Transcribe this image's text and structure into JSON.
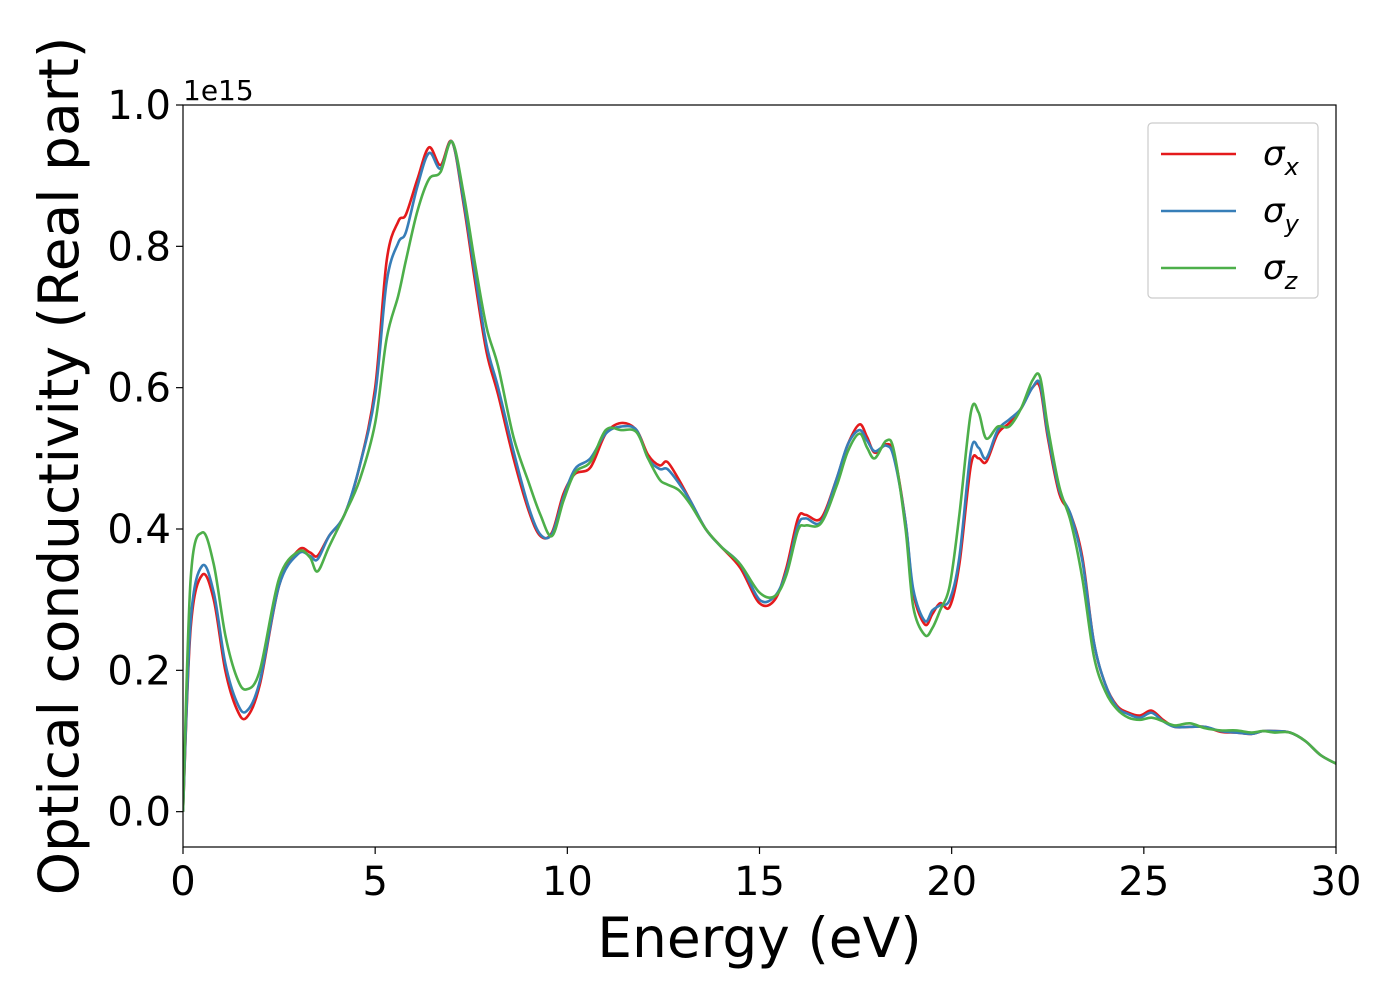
{
  "chart_data": {
    "type": "line",
    "xlabel": "Energy (eV)",
    "ylabel": "Optical conductivity (Real part)",
    "y_offset_label": "1e15",
    "y_scale_factor": 1000000000000000.0,
    "xlim": [
      0,
      30
    ],
    "ylim": [
      -0.05,
      1.0
    ],
    "x_ticks": [
      0,
      5,
      10,
      15,
      20,
      25,
      30
    ],
    "x_tick_labels": [
      "0",
      "5",
      "10",
      "15",
      "20",
      "25",
      "30"
    ],
    "y_ticks": [
      0.0,
      0.2,
      0.4,
      0.6,
      0.8,
      1.0
    ],
    "y_tick_labels": [
      "0.0",
      "0.2",
      "0.4",
      "0.6",
      "0.8",
      "1.0"
    ],
    "grid": false,
    "legend_position": "top-right",
    "series": [
      {
        "name": "σx",
        "symbol": "σ",
        "subscript": "x",
        "color": "#e41a1c",
        "x": [
          0,
          0.2,
          0.5,
          0.8,
          1.1,
          1.4,
          1.65,
          2.0,
          2.5,
          3.0,
          3.3,
          3.5,
          3.8,
          4.2,
          4.6,
          5.0,
          5.3,
          5.6,
          5.8,
          6.1,
          6.4,
          6.7,
          7.0,
          7.3,
          7.6,
          7.9,
          8.2,
          8.6,
          9.0,
          9.3,
          9.6,
          9.9,
          10.2,
          10.6,
          11.0,
          11.4,
          11.8,
          12.1,
          12.4,
          12.6,
          12.9,
          13.2,
          13.6,
          14.0,
          14.5,
          15.0,
          15.4,
          15.7,
          16.0,
          16.2,
          16.6,
          17.0,
          17.3,
          17.6,
          17.8,
          18.0,
          18.3,
          18.5,
          18.8,
          19.0,
          19.3,
          19.5,
          19.7,
          19.95,
          20.2,
          20.5,
          20.7,
          20.9,
          21.2,
          21.5,
          21.8,
          22.1,
          22.3,
          22.5,
          22.8,
          23.1,
          23.4,
          23.7,
          24.0,
          24.3,
          24.6,
          24.9,
          25.2,
          25.5,
          25.8,
          26.2,
          26.6,
          27.0,
          27.4,
          27.8,
          28.1,
          28.4,
          28.8,
          29.2,
          29.6,
          30.0
        ],
        "values": [
          0.0,
          0.26,
          0.335,
          0.3,
          0.2,
          0.145,
          0.133,
          0.18,
          0.32,
          0.37,
          0.367,
          0.362,
          0.39,
          0.42,
          0.49,
          0.6,
          0.78,
          0.835,
          0.845,
          0.895,
          0.94,
          0.915,
          0.948,
          0.86,
          0.75,
          0.65,
          0.59,
          0.5,
          0.425,
          0.39,
          0.395,
          0.45,
          0.478,
          0.487,
          0.535,
          0.55,
          0.54,
          0.505,
          0.49,
          0.495,
          0.47,
          0.44,
          0.4,
          0.375,
          0.345,
          0.295,
          0.3,
          0.345,
          0.415,
          0.42,
          0.415,
          0.47,
          0.52,
          0.548,
          0.53,
          0.508,
          0.52,
          0.505,
          0.41,
          0.31,
          0.265,
          0.28,
          0.295,
          0.29,
          0.35,
          0.49,
          0.5,
          0.495,
          0.535,
          0.55,
          0.57,
          0.6,
          0.6,
          0.53,
          0.45,
          0.42,
          0.36,
          0.24,
          0.18,
          0.15,
          0.14,
          0.136,
          0.143,
          0.13,
          0.12,
          0.12,
          0.12,
          0.113,
          0.112,
          0.11,
          0.114,
          0.114,
          0.112,
          0.1,
          0.08,
          0.068
        ]
      },
      {
        "name": "σy",
        "symbol": "σ",
        "subscript": "y",
        "color": "#377eb8",
        "x": [
          0,
          0.2,
          0.5,
          0.8,
          1.1,
          1.4,
          1.65,
          2.0,
          2.5,
          3.0,
          3.3,
          3.5,
          3.8,
          4.2,
          4.6,
          5.0,
          5.3,
          5.6,
          5.8,
          6.1,
          6.4,
          6.7,
          7.0,
          7.3,
          7.6,
          7.9,
          8.2,
          8.6,
          9.0,
          9.3,
          9.6,
          9.9,
          10.2,
          10.6,
          11.0,
          11.4,
          11.8,
          12.1,
          12.4,
          12.6,
          12.9,
          13.2,
          13.6,
          14.0,
          14.5,
          15.0,
          15.4,
          15.7,
          16.0,
          16.2,
          16.6,
          17.0,
          17.3,
          17.6,
          17.8,
          18.0,
          18.3,
          18.5,
          18.8,
          19.0,
          19.3,
          19.5,
          19.7,
          19.95,
          20.2,
          20.5,
          20.7,
          20.9,
          21.2,
          21.5,
          21.8,
          22.1,
          22.3,
          22.5,
          22.8,
          23.1,
          23.4,
          23.7,
          24.0,
          24.3,
          24.6,
          24.9,
          25.2,
          25.5,
          25.8,
          26.2,
          26.6,
          27.0,
          27.4,
          27.8,
          28.1,
          28.4,
          28.8,
          29.2,
          29.6,
          30.0
        ],
        "values": [
          0.0,
          0.27,
          0.348,
          0.31,
          0.21,
          0.155,
          0.142,
          0.185,
          0.32,
          0.365,
          0.362,
          0.357,
          0.39,
          0.42,
          0.49,
          0.59,
          0.75,
          0.805,
          0.82,
          0.885,
          0.932,
          0.91,
          0.948,
          0.865,
          0.76,
          0.66,
          0.6,
          0.51,
          0.43,
          0.392,
          0.393,
          0.445,
          0.485,
          0.5,
          0.535,
          0.545,
          0.54,
          0.5,
          0.485,
          0.485,
          0.465,
          0.44,
          0.4,
          0.375,
          0.35,
          0.3,
          0.305,
          0.34,
          0.405,
          0.415,
          0.41,
          0.47,
          0.52,
          0.54,
          0.525,
          0.51,
          0.518,
          0.5,
          0.41,
          0.315,
          0.27,
          0.285,
          0.292,
          0.3,
          0.36,
          0.51,
          0.515,
          0.5,
          0.54,
          0.555,
          0.57,
          0.6,
          0.605,
          0.535,
          0.455,
          0.42,
          0.355,
          0.24,
          0.18,
          0.148,
          0.138,
          0.133,
          0.14,
          0.128,
          0.12,
          0.12,
          0.12,
          0.114,
          0.112,
          0.11,
          0.114,
          0.114,
          0.112,
          0.1,
          0.08,
          0.068
        ]
      },
      {
        "name": "σz",
        "symbol": "σ",
        "subscript": "z",
        "color": "#4daf4a",
        "x": [
          0,
          0.2,
          0.5,
          0.8,
          1.1,
          1.4,
          1.65,
          2.0,
          2.5,
          3.0,
          3.3,
          3.5,
          3.8,
          4.2,
          4.6,
          5.0,
          5.3,
          5.6,
          5.8,
          6.1,
          6.4,
          6.7,
          7.0,
          7.3,
          7.6,
          7.9,
          8.2,
          8.6,
          9.0,
          9.3,
          9.6,
          9.9,
          10.2,
          10.6,
          11.0,
          11.4,
          11.8,
          12.1,
          12.4,
          12.6,
          12.9,
          13.2,
          13.6,
          14.0,
          14.5,
          15.0,
          15.4,
          15.7,
          16.0,
          16.2,
          16.6,
          17.0,
          17.3,
          17.6,
          17.8,
          18.0,
          18.3,
          18.5,
          18.8,
          19.0,
          19.3,
          19.5,
          19.7,
          19.95,
          20.2,
          20.5,
          20.7,
          20.9,
          21.2,
          21.5,
          21.8,
          22.1,
          22.3,
          22.5,
          22.8,
          23.1,
          23.4,
          23.7,
          24.0,
          24.3,
          24.6,
          24.9,
          25.2,
          25.5,
          25.8,
          26.2,
          26.6,
          27.0,
          27.4,
          27.8,
          28.1,
          28.4,
          28.8,
          29.2,
          29.6,
          30.0
        ],
        "values": [
          0.0,
          0.33,
          0.395,
          0.35,
          0.25,
          0.19,
          0.173,
          0.2,
          0.33,
          0.368,
          0.36,
          0.34,
          0.375,
          0.42,
          0.47,
          0.55,
          0.67,
          0.73,
          0.78,
          0.85,
          0.895,
          0.905,
          0.948,
          0.875,
          0.775,
          0.685,
          0.63,
          0.53,
          0.465,
          0.42,
          0.39,
          0.44,
          0.48,
          0.495,
          0.54,
          0.54,
          0.537,
          0.5,
          0.47,
          0.463,
          0.455,
          0.435,
          0.4,
          0.375,
          0.35,
          0.31,
          0.305,
          0.335,
          0.398,
          0.405,
          0.408,
          0.46,
          0.51,
          0.535,
          0.515,
          0.5,
          0.525,
          0.51,
          0.4,
          0.29,
          0.25,
          0.26,
          0.285,
          0.32,
          0.42,
          0.565,
          0.565,
          0.528,
          0.545,
          0.545,
          0.57,
          0.61,
          0.615,
          0.545,
          0.46,
          0.41,
          0.33,
          0.22,
          0.17,
          0.145,
          0.133,
          0.13,
          0.133,
          0.128,
          0.122,
          0.125,
          0.118,
          0.115,
          0.115,
          0.112,
          0.114,
          0.112,
          0.112,
          0.1,
          0.08,
          0.068
        ]
      }
    ]
  }
}
